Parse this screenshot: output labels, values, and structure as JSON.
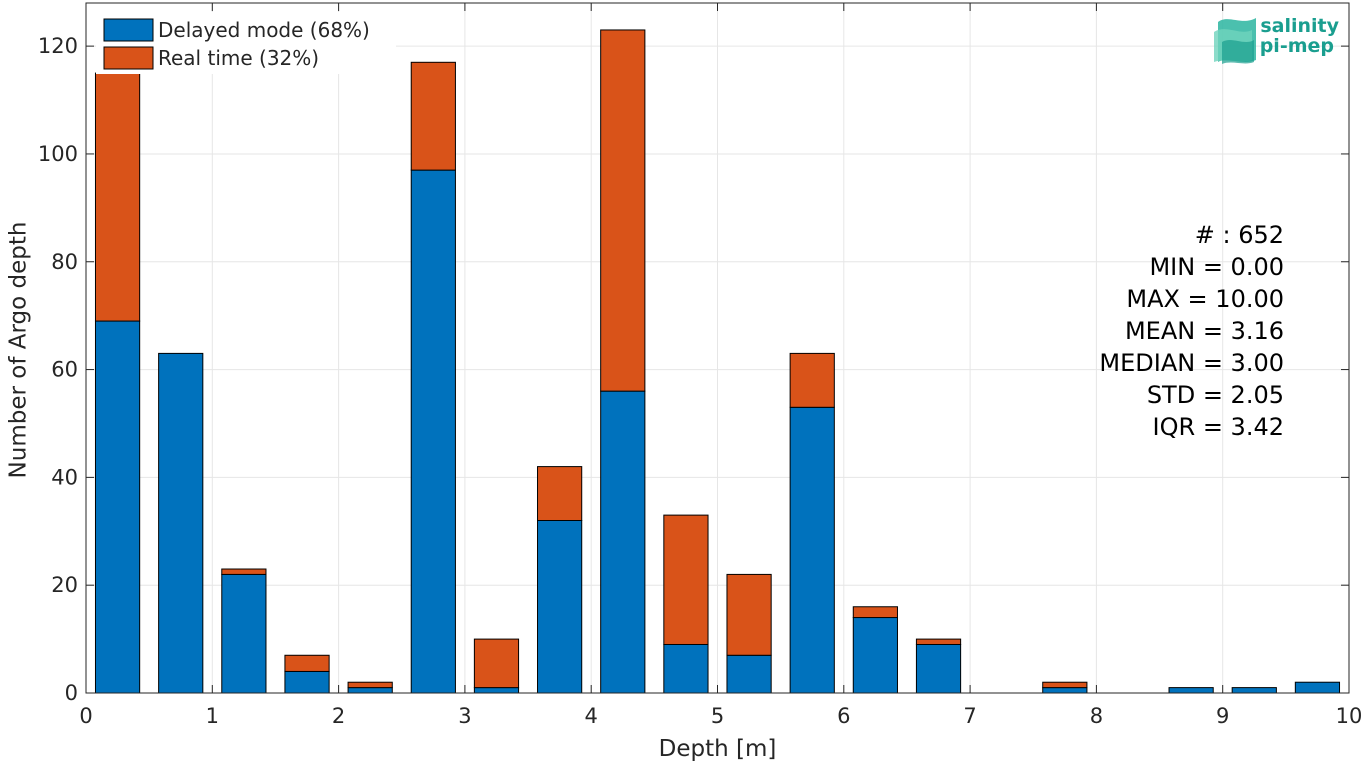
{
  "chart_data": {
    "type": "bar",
    "stacked": true,
    "bin_width": 0.5,
    "bar_fraction": 0.7,
    "x": [
      0.25,
      0.75,
      1.25,
      1.75,
      2.25,
      2.75,
      3.25,
      3.75,
      4.25,
      4.75,
      5.25,
      5.75,
      6.25,
      6.75,
      7.25,
      7.75,
      8.25,
      8.75,
      9.25,
      9.75
    ],
    "series": [
      {
        "name": "Delayed mode (68%)",
        "color": "#0072BD",
        "values": [
          69,
          63,
          22,
          4,
          1,
          97,
          1,
          32,
          56,
          9,
          7,
          53,
          14,
          9,
          0,
          1,
          0,
          1,
          1,
          2
        ]
      },
      {
        "name": "Real time (32%)",
        "color": "#D95319",
        "values": [
          46,
          0,
          1,
          3,
          1,
          20,
          9,
          10,
          67,
          24,
          15,
          10,
          2,
          1,
          0,
          1,
          0,
          0,
          0,
          0
        ]
      }
    ],
    "xlabel": "Depth [m]",
    "ylabel": "Number of Argo depth",
    "xlim": [
      0,
      10
    ],
    "ylim": [
      0,
      128
    ],
    "xticks": [
      0,
      1,
      2,
      3,
      4,
      5,
      6,
      7,
      8,
      9,
      10
    ],
    "yticks": [
      0,
      20,
      40,
      60,
      80,
      100,
      120
    ],
    "grid": true,
    "legend_position": "top-left",
    "stats": [
      "# : 652",
      "MIN = 0.00",
      "MAX =  10.00",
      "MEAN = 3.16",
      "MEDIAN = 3.00",
      "STD = 2.05",
      "IQR = 3.42"
    ]
  },
  "logo": {
    "line1": "salinity",
    "line2": "pi-mep",
    "color": "#1a9e8f"
  }
}
